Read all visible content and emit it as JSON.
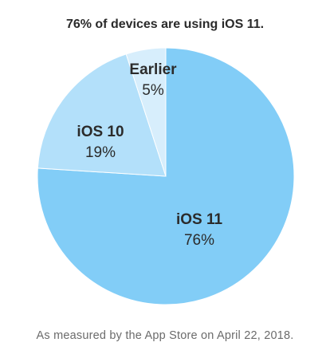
{
  "title": "76% of devices are using iOS 11.",
  "footnote": "As measured by the App Store on April 22, 2018.",
  "colors": {
    "ios11": "#82cdf7",
    "ios10": "#b3e0fa",
    "earlier": "#d7eefc"
  },
  "chart_data": {
    "type": "pie",
    "title": "76% of devices are using iOS 11.",
    "slices": [
      {
        "name": "iOS 11",
        "value": 76,
        "value_label": "76%",
        "color": "#82cdf7"
      },
      {
        "name": "iOS 10",
        "value": 19,
        "value_label": "19%",
        "color": "#b3e0fa"
      },
      {
        "name": "Earlier",
        "value": 5,
        "value_label": "5%",
        "color": "#d7eefc"
      }
    ]
  }
}
